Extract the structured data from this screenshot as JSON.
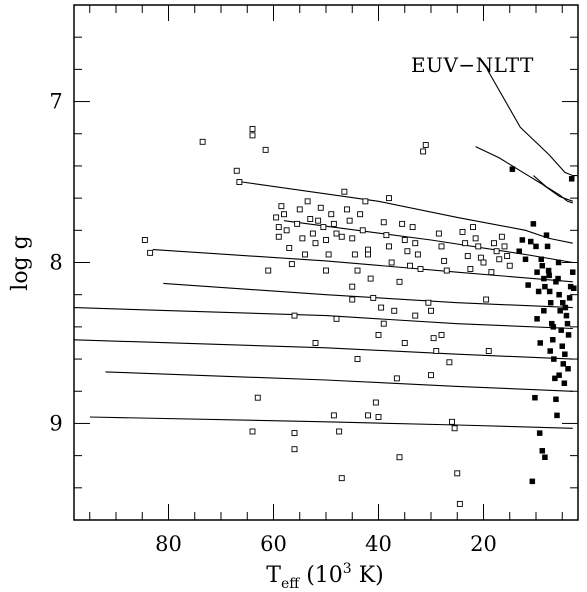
{
  "chart_data": {
    "type": "scatter",
    "title": "",
    "xlabel": "T_eff (10^3 K)",
    "ylabel": "log g",
    "x_reversed": true,
    "y_reversed": true,
    "xlim": [
      98,
      2
    ],
    "ylim": [
      6.4,
      9.6
    ],
    "x_major_ticks": [
      80,
      60,
      40,
      20
    ],
    "x_tick_labels": [
      "80",
      "60",
      "40",
      "20"
    ],
    "y_major_ticks": [
      7,
      8,
      9
    ],
    "y_tick_labels": [
      "7",
      "8",
      "9"
    ],
    "x_minor_step": 5,
    "y_minor_step": 0.2,
    "grid": false,
    "annotation": "EUV−NLTT",
    "annotation_curve": [
      [
        19.3,
        6.8
      ],
      [
        13,
        7.16
      ],
      [
        7.5,
        7.33
      ],
      [
        4.5,
        7.44
      ],
      [
        3,
        7.46
      ],
      [
        2,
        7.46
      ]
    ],
    "curves": [
      [
        [
          66,
          7.5
        ],
        [
          40,
          7.62
        ],
        [
          25,
          7.72
        ],
        [
          12,
          7.8
        ],
        [
          7.5,
          7.85
        ],
        [
          3,
          7.88
        ]
      ],
      [
        [
          21.5,
          7.28
        ],
        [
          17,
          7.35
        ],
        [
          13,
          7.43
        ],
        [
          9,
          7.51
        ],
        [
          5.5,
          7.59
        ],
        [
          3,
          7.62
        ]
      ],
      [
        [
          10.5,
          7.46
        ],
        [
          8,
          7.53
        ],
        [
          5.5,
          7.58
        ],
        [
          4,
          7.62
        ],
        [
          3,
          7.63
        ]
      ],
      [
        [
          58,
          7.74
        ],
        [
          30,
          7.86
        ],
        [
          12,
          7.95
        ],
        [
          3,
          8.0
        ]
      ],
      [
        [
          83,
          7.92
        ],
        [
          50,
          7.99
        ],
        [
          25,
          8.06
        ],
        [
          3,
          8.12
        ]
      ],
      [
        [
          81,
          8.13
        ],
        [
          50,
          8.2
        ],
        [
          25,
          8.25
        ],
        [
          3,
          8.28
        ]
      ],
      [
        [
          98,
          8.28
        ],
        [
          50,
          8.33
        ],
        [
          25,
          8.38
        ],
        [
          3,
          8.41
        ]
      ],
      [
        [
          98,
          8.48
        ],
        [
          50,
          8.53
        ],
        [
          25,
          8.57
        ],
        [
          3,
          8.6
        ]
      ],
      [
        [
          92,
          8.68
        ],
        [
          50,
          8.73
        ],
        [
          25,
          8.77
        ],
        [
          3,
          8.8
        ]
      ],
      [
        [
          95,
          8.96
        ],
        [
          50,
          8.99
        ],
        [
          25,
          9.01
        ],
        [
          3,
          9.03
        ]
      ]
    ],
    "series": [
      {
        "marker": "open-square",
        "points": [
          [
            84.5,
            7.86
          ],
          [
            83.5,
            7.94
          ],
          [
            73.5,
            7.25
          ],
          [
            67,
            7.43
          ],
          [
            66.5,
            7.5
          ],
          [
            64,
            7.17
          ],
          [
            64,
            7.21
          ],
          [
            61.5,
            7.3
          ],
          [
            63,
            8.84
          ],
          [
            64,
            9.05
          ],
          [
            61,
            8.05
          ],
          [
            59.5,
            7.72
          ],
          [
            59,
            7.78
          ],
          [
            59,
            7.84
          ],
          [
            58.5,
            7.65
          ],
          [
            58,
            7.7
          ],
          [
            57.5,
            7.8
          ],
          [
            57,
            7.91
          ],
          [
            56.5,
            8.01
          ],
          [
            56,
            8.33
          ],
          [
            56,
            9.06
          ],
          [
            56,
            9.16
          ],
          [
            55.5,
            7.76
          ],
          [
            55,
            7.67
          ],
          [
            54.5,
            7.85
          ],
          [
            54,
            7.95
          ],
          [
            53.5,
            7.62
          ],
          [
            53,
            7.73
          ],
          [
            52.5,
            7.82
          ],
          [
            52,
            7.88
          ],
          [
            51.5,
            7.74
          ],
          [
            51,
            7.66
          ],
          [
            50.5,
            7.78
          ],
          [
            50,
            7.86
          ],
          [
            49.5,
            7.95
          ],
          [
            49,
            7.7
          ],
          [
            48.5,
            7.76
          ],
          [
            48.5,
            8.95
          ],
          [
            48,
            7.82
          ],
          [
            47.5,
            9.05
          ],
          [
            47,
            9.34
          ],
          [
            46.5,
            7.56
          ],
          [
            46,
            7.67
          ],
          [
            45.5,
            7.74
          ],
          [
            45,
            7.85
          ],
          [
            44.5,
            7.95
          ],
          [
            44,
            8.05
          ],
          [
            43.5,
            7.7
          ],
          [
            43,
            7.8
          ],
          [
            42.5,
            7.62
          ],
          [
            42,
            7.92
          ],
          [
            41.5,
            8.1
          ],
          [
            41,
            8.22
          ],
          [
            40.5,
            8.87
          ],
          [
            40,
            8.96
          ],
          [
            39.5,
            8.28
          ],
          [
            39,
            7.75
          ],
          [
            38.5,
            7.83
          ],
          [
            38,
            7.9
          ],
          [
            37.5,
            8.0
          ],
          [
            37,
            8.3
          ],
          [
            36.5,
            8.72
          ],
          [
            36,
            9.21
          ],
          [
            35.5,
            7.76
          ],
          [
            35,
            7.86
          ],
          [
            34.5,
            7.93
          ],
          [
            34,
            8.02
          ],
          [
            33.5,
            7.78
          ],
          [
            33,
            7.88
          ],
          [
            32.5,
            7.95
          ],
          [
            32,
            8.04
          ],
          [
            31.5,
            7.31
          ],
          [
            31,
            7.27
          ],
          [
            30.5,
            8.25
          ],
          [
            30,
            8.3
          ],
          [
            29.5,
            8.47
          ],
          [
            29,
            8.55
          ],
          [
            28.5,
            7.82
          ],
          [
            28,
            7.9
          ],
          [
            27.5,
            7.99
          ],
          [
            27,
            8.05
          ],
          [
            26.5,
            8.62
          ],
          [
            26,
            8.99
          ],
          [
            25.5,
            9.03
          ],
          [
            25,
            9.31
          ],
          [
            24.5,
            9.5
          ],
          [
            24,
            7.81
          ],
          [
            23.5,
            7.88
          ],
          [
            23,
            7.96
          ],
          [
            22.5,
            8.04
          ],
          [
            22,
            7.78
          ],
          [
            21.5,
            7.85
          ],
          [
            21,
            7.9
          ],
          [
            20.5,
            7.97
          ],
          [
            20,
            8.0
          ],
          [
            19.5,
            8.23
          ],
          [
            19,
            8.55
          ],
          [
            18.5,
            8.06
          ],
          [
            18,
            7.88
          ],
          [
            17.5,
            7.93
          ],
          [
            17,
            7.98
          ],
          [
            16.5,
            7.84
          ],
          [
            16,
            7.9
          ],
          [
            15.5,
            7.96
          ],
          [
            15,
            8.02
          ],
          [
            38,
            7.6
          ],
          [
            45,
            8.23
          ],
          [
            48,
            8.35
          ],
          [
            52,
            8.5
          ],
          [
            44,
            8.6
          ],
          [
            42,
            8.95
          ],
          [
            39,
            8.38
          ],
          [
            36,
            8.12
          ],
          [
            33,
            8.33
          ],
          [
            30,
            8.7
          ],
          [
            28,
            8.45
          ],
          [
            45,
            8.15
          ],
          [
            40,
            8.45
          ],
          [
            50,
            8.05
          ],
          [
            35,
            8.5
          ],
          [
            42,
            7.95
          ],
          [
            47,
            7.84
          ]
        ]
      },
      {
        "marker": "filled-square",
        "points": [
          [
            14.5,
            7.42
          ],
          [
            13.2,
            7.93
          ],
          [
            12.6,
            7.86
          ],
          [
            12,
            7.98
          ],
          [
            11.5,
            8.14
          ],
          [
            11,
            7.87
          ],
          [
            10.5,
            7.76
          ],
          [
            10,
            7.9
          ],
          [
            9.8,
            8.06
          ],
          [
            9.5,
            8.18
          ],
          [
            9.2,
            8.5
          ],
          [
            9,
            7.98
          ],
          [
            8.8,
            8.02
          ],
          [
            8.5,
            8.1
          ],
          [
            8.3,
            8.15
          ],
          [
            8,
            7.83
          ],
          [
            7.8,
            7.9
          ],
          [
            7.6,
            8.05
          ],
          [
            7.4,
            8.18
          ],
          [
            7.2,
            8.25
          ],
          [
            7,
            8.38
          ],
          [
            6.8,
            8.48
          ],
          [
            6.6,
            8.6
          ],
          [
            6.4,
            8.72
          ],
          [
            6.2,
            8.85
          ],
          [
            6,
            8.95
          ],
          [
            5.8,
            8.1
          ],
          [
            5.6,
            8.2
          ],
          [
            5.4,
            8.3
          ],
          [
            5.2,
            8.42
          ],
          [
            5,
            8.52
          ],
          [
            4.8,
            8.63
          ],
          [
            4.6,
            8.75
          ],
          [
            4.4,
            8.28
          ],
          [
            4.2,
            8.33
          ],
          [
            4,
            8.38
          ],
          [
            3.8,
            8.45
          ],
          [
            3.6,
            8.22
          ],
          [
            3.4,
            8.15
          ],
          [
            3.2,
            7.48
          ],
          [
            3,
            8.06
          ],
          [
            2.8,
            8.16
          ],
          [
            9.3,
            9.06
          ],
          [
            8.8,
            9.17
          ],
          [
            8.3,
            9.21
          ],
          [
            10.7,
            9.36
          ],
          [
            7.5,
            8.08
          ],
          [
            6.2,
            8.12
          ],
          [
            5.7,
            8.0
          ],
          [
            4.9,
            8.25
          ],
          [
            4.5,
            8.57
          ],
          [
            8.5,
            8.3
          ],
          [
            9.8,
            8.35
          ],
          [
            6.7,
            8.4
          ],
          [
            7.3,
            8.55
          ],
          [
            5.6,
            8.7
          ],
          [
            3.9,
            8.66
          ],
          [
            10.2,
            8.84
          ]
        ]
      }
    ]
  }
}
